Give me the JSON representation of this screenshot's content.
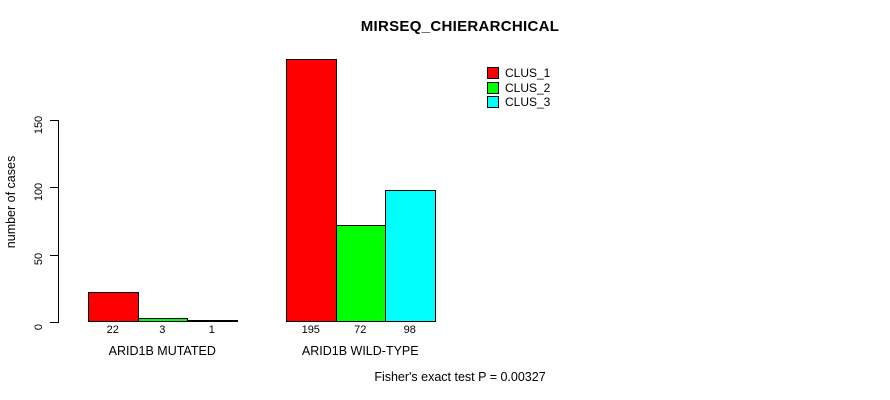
{
  "chart_data": {
    "type": "bar",
    "title": "MIRSEQ_CHIERARCHICAL",
    "ylabel": "number of cases",
    "xlabel": "",
    "ylim": [
      0,
      195
    ],
    "yticks": [
      0,
      50,
      100,
      150
    ],
    "grid": false,
    "legend_position": "top-right",
    "categories": [
      "ARID1B MUTATED",
      "ARID1B WILD-TYPE"
    ],
    "series": [
      {
        "name": "CLUS_1",
        "color": "#FF0000",
        "values": [
          22,
          195
        ]
      },
      {
        "name": "CLUS_2",
        "color": "#00FF00",
        "values": [
          3,
          72
        ]
      },
      {
        "name": "CLUS_3",
        "color": "#00FFFF",
        "values": [
          1,
          98
        ]
      }
    ],
    "bar_value_labels": [
      [
        "22",
        "3",
        "1"
      ],
      [
        "195",
        "72",
        "98"
      ]
    ],
    "annotation": "Fisher's exact test P = 0.00327",
    "bar_border_color": "#000000",
    "axis_color": "#000000",
    "background_color": "#FFFFFF"
  }
}
